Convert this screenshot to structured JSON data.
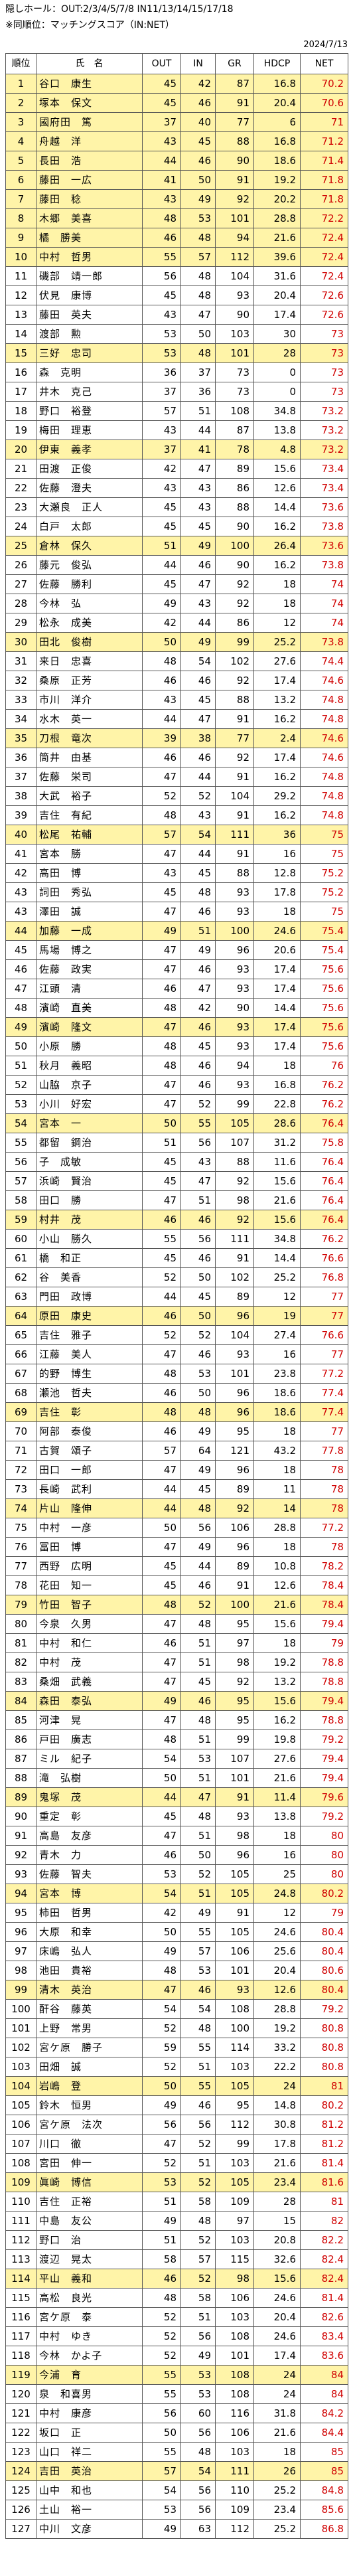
{
  "header": {
    "line1": "隠しホール：OUT:2/3/4/5/7/8 IN11/13/14/15/17/18",
    "line2": "※同順位：マッチングスコア（IN:NET）",
    "date": "2024/7/13"
  },
  "columns": [
    "順位",
    "氏　名",
    "OUT",
    "IN",
    "GR",
    "HDCP",
    "NET"
  ],
  "colors": {
    "highlight": "#fff4a8",
    "net_red": "#d00000"
  },
  "rows": [
    {
      "rank": "1",
      "name": "谷口　康生",
      "out": "45",
      "in": "42",
      "gr": "87",
      "hdcp": "16.8",
      "net": "70.2"
    },
    {
      "rank": "2",
      "name": "塚本　保文",
      "out": "45",
      "in": "46",
      "gr": "91",
      "hdcp": "20.4",
      "net": "70.6"
    },
    {
      "rank": "3",
      "name": "國府田　篤",
      "out": "37",
      "in": "40",
      "gr": "77",
      "hdcp": "6",
      "net": "71"
    },
    {
      "rank": "4",
      "name": "舟越　洋",
      "out": "43",
      "in": "45",
      "gr": "88",
      "hdcp": "16.8",
      "net": "71.2"
    },
    {
      "rank": "5",
      "name": "長田　浩",
      "out": "44",
      "in": "46",
      "gr": "90",
      "hdcp": "18.6",
      "net": "71.4"
    },
    {
      "rank": "6",
      "name": "藤田　一広",
      "out": "41",
      "in": "50",
      "gr": "91",
      "hdcp": "19.2",
      "net": "71.8"
    },
    {
      "rank": "7",
      "name": "藤田　稔",
      "out": "43",
      "in": "49",
      "gr": "92",
      "hdcp": "20.2",
      "net": "71.8"
    },
    {
      "rank": "8",
      "name": "木郷　美喜",
      "out": "48",
      "in": "53",
      "gr": "101",
      "hdcp": "28.8",
      "net": "72.2"
    },
    {
      "rank": "9",
      "name": "橘　勝美",
      "out": "46",
      "in": "48",
      "gr": "94",
      "hdcp": "21.6",
      "net": "72.4"
    },
    {
      "rank": "10",
      "name": "中村　哲男",
      "out": "55",
      "in": "57",
      "gr": "112",
      "hdcp": "39.6",
      "net": "72.4"
    },
    {
      "rank": "11",
      "name": "磯部　靖一郎",
      "out": "56",
      "in": "48",
      "gr": "104",
      "hdcp": "31.6",
      "net": "72.4"
    },
    {
      "rank": "12",
      "name": "伏見　康博",
      "out": "45",
      "in": "48",
      "gr": "93",
      "hdcp": "20.4",
      "net": "72.6"
    },
    {
      "rank": "13",
      "name": "藤田　英夫",
      "out": "43",
      "in": "47",
      "gr": "90",
      "hdcp": "17.4",
      "net": "72.6"
    },
    {
      "rank": "14",
      "name": "渡部　勲",
      "out": "53",
      "in": "50",
      "gr": "103",
      "hdcp": "30",
      "net": "73"
    },
    {
      "rank": "15",
      "name": "三好　忠司",
      "out": "53",
      "in": "48",
      "gr": "101",
      "hdcp": "28",
      "net": "73"
    },
    {
      "rank": "16",
      "name": "森　克明",
      "out": "36",
      "in": "37",
      "gr": "73",
      "hdcp": "0",
      "net": "73"
    },
    {
      "rank": "17",
      "name": "井木　克己",
      "out": "37",
      "in": "36",
      "gr": "73",
      "hdcp": "0",
      "net": "73"
    },
    {
      "rank": "18",
      "name": "野口　裕登",
      "out": "57",
      "in": "51",
      "gr": "108",
      "hdcp": "34.8",
      "net": "73.2"
    },
    {
      "rank": "19",
      "name": "梅田　理恵",
      "out": "43",
      "in": "44",
      "gr": "87",
      "hdcp": "13.8",
      "net": "73.2"
    },
    {
      "rank": "20",
      "name": "伊東　義孝",
      "out": "37",
      "in": "41",
      "gr": "78",
      "hdcp": "4.8",
      "net": "73.2"
    },
    {
      "rank": "21",
      "name": "田渡　正俊",
      "out": "42",
      "in": "47",
      "gr": "89",
      "hdcp": "15.6",
      "net": "73.4"
    },
    {
      "rank": "22",
      "name": "佐藤　澄夫",
      "out": "43",
      "in": "43",
      "gr": "86",
      "hdcp": "12.6",
      "net": "73.4"
    },
    {
      "rank": "23",
      "name": "大瀬良　正人",
      "out": "45",
      "in": "43",
      "gr": "88",
      "hdcp": "14.4",
      "net": "73.6"
    },
    {
      "rank": "24",
      "name": "白戸　太郎",
      "out": "45",
      "in": "45",
      "gr": "90",
      "hdcp": "16.2",
      "net": "73.8"
    },
    {
      "rank": "25",
      "name": "倉林　保久",
      "out": "51",
      "in": "49",
      "gr": "100",
      "hdcp": "26.4",
      "net": "73.6"
    },
    {
      "rank": "26",
      "name": "藤元　俊弘",
      "out": "44",
      "in": "46",
      "gr": "90",
      "hdcp": "16.2",
      "net": "73.8"
    },
    {
      "rank": "27",
      "name": "佐藤　勝利",
      "out": "45",
      "in": "47",
      "gr": "92",
      "hdcp": "18",
      "net": "74"
    },
    {
      "rank": "28",
      "name": "今林　弘",
      "out": "49",
      "in": "43",
      "gr": "92",
      "hdcp": "18",
      "net": "74"
    },
    {
      "rank": "29",
      "name": "松永　成美",
      "out": "42",
      "in": "44",
      "gr": "86",
      "hdcp": "12",
      "net": "74"
    },
    {
      "rank": "30",
      "name": "田北　俊樹",
      "out": "50",
      "in": "49",
      "gr": "99",
      "hdcp": "25.2",
      "net": "73.8"
    },
    {
      "rank": "31",
      "name": "来日　忠喜",
      "out": "48",
      "in": "54",
      "gr": "102",
      "hdcp": "27.6",
      "net": "74.4"
    },
    {
      "rank": "32",
      "name": "桑原　正芳",
      "out": "46",
      "in": "46",
      "gr": "92",
      "hdcp": "17.4",
      "net": "74.6"
    },
    {
      "rank": "33",
      "name": "市川　洋介",
      "out": "43",
      "in": "45",
      "gr": "88",
      "hdcp": "13.2",
      "net": "74.8"
    },
    {
      "rank": "34",
      "name": "水木　英一",
      "out": "44",
      "in": "47",
      "gr": "91",
      "hdcp": "16.2",
      "net": "74.8"
    },
    {
      "rank": "35",
      "name": "刀根　竜次",
      "out": "39",
      "in": "38",
      "gr": "77",
      "hdcp": "2.4",
      "net": "74.6"
    },
    {
      "rank": "36",
      "name": "筒井　由基",
      "out": "46",
      "in": "46",
      "gr": "92",
      "hdcp": "17.4",
      "net": "74.6"
    },
    {
      "rank": "37",
      "name": "佐藤　栄司",
      "out": "47",
      "in": "44",
      "gr": "91",
      "hdcp": "16.2",
      "net": "74.8"
    },
    {
      "rank": "38",
      "name": "大武　裕子",
      "out": "52",
      "in": "52",
      "gr": "104",
      "hdcp": "29.2",
      "net": "74.8"
    },
    {
      "rank": "39",
      "name": "吉住　有紀",
      "out": "48",
      "in": "43",
      "gr": "91",
      "hdcp": "16.2",
      "net": "74.8"
    },
    {
      "rank": "40",
      "name": "松尾　祐輔",
      "out": "57",
      "in": "54",
      "gr": "111",
      "hdcp": "36",
      "net": "75"
    },
    {
      "rank": "41",
      "name": "宮本　勝",
      "out": "47",
      "in": "44",
      "gr": "91",
      "hdcp": "16",
      "net": "75"
    },
    {
      "rank": "42",
      "name": "高田　博",
      "out": "43",
      "in": "45",
      "gr": "88",
      "hdcp": "12.8",
      "net": "75.2"
    },
    {
      "rank": "43",
      "name": "詞田　秀弘",
      "out": "45",
      "in": "48",
      "gr": "93",
      "hdcp": "17.8",
      "net": "75.2"
    },
    {
      "rank": "43",
      "name": "澤田　誠",
      "out": "47",
      "in": "46",
      "gr": "93",
      "hdcp": "18",
      "net": "75"
    },
    {
      "rank": "44",
      "name": "加藤　一成",
      "out": "49",
      "in": "51",
      "gr": "100",
      "hdcp": "24.6",
      "net": "75.4"
    },
    {
      "rank": "45",
      "name": "馬場　博之",
      "out": "47",
      "in": "49",
      "gr": "96",
      "hdcp": "20.6",
      "net": "75.4"
    },
    {
      "rank": "46",
      "name": "佐藤　政実",
      "out": "47",
      "in": "46",
      "gr": "93",
      "hdcp": "17.4",
      "net": "75.6"
    },
    {
      "rank": "47",
      "name": "江頭　清",
      "out": "46",
      "in": "47",
      "gr": "93",
      "hdcp": "17.4",
      "net": "75.6"
    },
    {
      "rank": "48",
      "name": "濱崎　直美",
      "out": "48",
      "in": "42",
      "gr": "90",
      "hdcp": "14.4",
      "net": "75.6"
    },
    {
      "rank": "49",
      "name": "濱崎　隆文",
      "out": "47",
      "in": "46",
      "gr": "93",
      "hdcp": "17.4",
      "net": "75.6"
    },
    {
      "rank": "50",
      "name": "小原　勝",
      "out": "48",
      "in": "45",
      "gr": "93",
      "hdcp": "17.4",
      "net": "75.6"
    },
    {
      "rank": "51",
      "name": "秋月　義昭",
      "out": "48",
      "in": "46",
      "gr": "94",
      "hdcp": "18",
      "net": "76"
    },
    {
      "rank": "52",
      "name": "山脇　京子",
      "out": "47",
      "in": "46",
      "gr": "93",
      "hdcp": "16.8",
      "net": "76.2"
    },
    {
      "rank": "53",
      "name": "小川　好宏",
      "out": "47",
      "in": "52",
      "gr": "99",
      "hdcp": "22.8",
      "net": "76.2"
    },
    {
      "rank": "54",
      "name": "宮本　一",
      "out": "50",
      "in": "55",
      "gr": "105",
      "hdcp": "28.6",
      "net": "76.4"
    },
    {
      "rank": "55",
      "name": "都留　鋼治",
      "out": "51",
      "in": "56",
      "gr": "107",
      "hdcp": "31.2",
      "net": "75.8"
    },
    {
      "rank": "56",
      "name": "子　成敏",
      "out": "45",
      "in": "43",
      "gr": "88",
      "hdcp": "11.6",
      "net": "76.4"
    },
    {
      "rank": "57",
      "name": "浜崎　賢治",
      "out": "45",
      "in": "47",
      "gr": "92",
      "hdcp": "15.6",
      "net": "76.4"
    },
    {
      "rank": "58",
      "name": "田口　勝",
      "out": "47",
      "in": "51",
      "gr": "98",
      "hdcp": "21.6",
      "net": "76.4"
    },
    {
      "rank": "59",
      "name": "村井　茂",
      "out": "46",
      "in": "46",
      "gr": "92",
      "hdcp": "15.6",
      "net": "76.4"
    },
    {
      "rank": "60",
      "name": "小山　勝久",
      "out": "55",
      "in": "56",
      "gr": "111",
      "hdcp": "34.8",
      "net": "76.2"
    },
    {
      "rank": "61",
      "name": "橋　和正",
      "out": "45",
      "in": "46",
      "gr": "91",
      "hdcp": "14.4",
      "net": "76.6"
    },
    {
      "rank": "62",
      "name": "谷　美香",
      "out": "52",
      "in": "50",
      "gr": "102",
      "hdcp": "25.2",
      "net": "76.8"
    },
    {
      "rank": "63",
      "name": "門田　政博",
      "out": "44",
      "in": "45",
      "gr": "89",
      "hdcp": "12",
      "net": "77"
    },
    {
      "rank": "64",
      "name": "原田　康史",
      "out": "46",
      "in": "50",
      "gr": "96",
      "hdcp": "19",
      "net": "77"
    },
    {
      "rank": "65",
      "name": "吉住　雅子",
      "out": "52",
      "in": "52",
      "gr": "104",
      "hdcp": "27.4",
      "net": "76.6"
    },
    {
      "rank": "66",
      "name": "江藤　美人",
      "out": "47",
      "in": "46",
      "gr": "93",
      "hdcp": "16",
      "net": "77"
    },
    {
      "rank": "67",
      "name": "的野　博生",
      "out": "48",
      "in": "53",
      "gr": "101",
      "hdcp": "23.8",
      "net": "77.2"
    },
    {
      "rank": "68",
      "name": "瀬池　哲夫",
      "out": "46",
      "in": "50",
      "gr": "96",
      "hdcp": "18.6",
      "net": "77.4"
    },
    {
      "rank": "69",
      "name": "吉住　彰",
      "out": "48",
      "in": "48",
      "gr": "96",
      "hdcp": "18.6",
      "net": "77.4"
    },
    {
      "rank": "70",
      "name": "阿部　泰俊",
      "out": "46",
      "in": "49",
      "gr": "95",
      "hdcp": "18",
      "net": "77"
    },
    {
      "rank": "71",
      "name": "古賀　頌子",
      "out": "57",
      "in": "64",
      "gr": "121",
      "hdcp": "43.2",
      "net": "77.8"
    },
    {
      "rank": "72",
      "name": "田口　一郎",
      "out": "47",
      "in": "49",
      "gr": "96",
      "hdcp": "18",
      "net": "78"
    },
    {
      "rank": "73",
      "name": "長崎　武利",
      "out": "44",
      "in": "45",
      "gr": "89",
      "hdcp": "11",
      "net": "78"
    },
    {
      "rank": "74",
      "name": "片山　隆伸",
      "out": "44",
      "in": "48",
      "gr": "92",
      "hdcp": "14",
      "net": "78"
    },
    {
      "rank": "75",
      "name": "中村　一彦",
      "out": "50",
      "in": "56",
      "gr": "106",
      "hdcp": "28.8",
      "net": "77.2"
    },
    {
      "rank": "76",
      "name": "冨田　博",
      "out": "47",
      "in": "49",
      "gr": "96",
      "hdcp": "18",
      "net": "78"
    },
    {
      "rank": "77",
      "name": "西野　広明",
      "out": "45",
      "in": "44",
      "gr": "89",
      "hdcp": "10.8",
      "net": "78.2"
    },
    {
      "rank": "78",
      "name": "花田　知一",
      "out": "45",
      "in": "46",
      "gr": "91",
      "hdcp": "12.6",
      "net": "78.4"
    },
    {
      "rank": "79",
      "name": "竹田　智子",
      "out": "48",
      "in": "52",
      "gr": "100",
      "hdcp": "21.6",
      "net": "78.4"
    },
    {
      "rank": "80",
      "name": "今泉　久男",
      "out": "47",
      "in": "48",
      "gr": "95",
      "hdcp": "15.6",
      "net": "79.4"
    },
    {
      "rank": "81",
      "name": "中村　和仁",
      "out": "46",
      "in": "51",
      "gr": "97",
      "hdcp": "18",
      "net": "79"
    },
    {
      "rank": "82",
      "name": "中村　茂",
      "out": "47",
      "in": "51",
      "gr": "98",
      "hdcp": "19.2",
      "net": "78.8"
    },
    {
      "rank": "83",
      "name": "桑畑　武義",
      "out": "47",
      "in": "45",
      "gr": "92",
      "hdcp": "13.2",
      "net": "78.8"
    },
    {
      "rank": "84",
      "name": "森田　泰弘",
      "out": "49",
      "in": "46",
      "gr": "95",
      "hdcp": "15.6",
      "net": "79.4"
    },
    {
      "rank": "85",
      "name": "河津　晃",
      "out": "47",
      "in": "48",
      "gr": "95",
      "hdcp": "16.2",
      "net": "78.8"
    },
    {
      "rank": "86",
      "name": "戸田　廣志",
      "out": "48",
      "in": "51",
      "gr": "99",
      "hdcp": "19.8",
      "net": "79.2"
    },
    {
      "rank": "87",
      "name": "ミル　紀子",
      "out": "54",
      "in": "53",
      "gr": "107",
      "hdcp": "27.6",
      "net": "79.4"
    },
    {
      "rank": "88",
      "name": "滝　弘樹",
      "out": "50",
      "in": "51",
      "gr": "101",
      "hdcp": "21.6",
      "net": "79.4"
    },
    {
      "rank": "89",
      "name": "鬼塚　茂",
      "out": "44",
      "in": "47",
      "gr": "91",
      "hdcp": "11.4",
      "net": "79.6"
    },
    {
      "rank": "90",
      "name": "重定　彰",
      "out": "45",
      "in": "48",
      "gr": "93",
      "hdcp": "13.8",
      "net": "79.2"
    },
    {
      "rank": "91",
      "name": "高島　友彦",
      "out": "47",
      "in": "51",
      "gr": "98",
      "hdcp": "18",
      "net": "80"
    },
    {
      "rank": "92",
      "name": "青木　力",
      "out": "46",
      "in": "50",
      "gr": "96",
      "hdcp": "16",
      "net": "80"
    },
    {
      "rank": "93",
      "name": "佐藤　智夫",
      "out": "53",
      "in": "52",
      "gr": "105",
      "hdcp": "25",
      "net": "80"
    },
    {
      "rank": "94",
      "name": "宮本　博",
      "out": "54",
      "in": "51",
      "gr": "105",
      "hdcp": "24.8",
      "net": "80.2"
    },
    {
      "rank": "95",
      "name": "柿田　哲男",
      "out": "42",
      "in": "49",
      "gr": "91",
      "hdcp": "12",
      "net": "79"
    },
    {
      "rank": "96",
      "name": "大原　和幸",
      "out": "50",
      "in": "55",
      "gr": "105",
      "hdcp": "24.6",
      "net": "80.4"
    },
    {
      "rank": "97",
      "name": "床嶋　弘人",
      "out": "49",
      "in": "57",
      "gr": "106",
      "hdcp": "25.6",
      "net": "80.4"
    },
    {
      "rank": "98",
      "name": "池田　貴裕",
      "out": "48",
      "in": "53",
      "gr": "101",
      "hdcp": "20.4",
      "net": "80.6"
    },
    {
      "rank": "99",
      "name": "清木　英治",
      "out": "47",
      "in": "46",
      "gr": "93",
      "hdcp": "12.6",
      "net": "80.4"
    },
    {
      "rank": "100",
      "name": "酐谷　藤英",
      "out": "54",
      "in": "54",
      "gr": "108",
      "hdcp": "28.8",
      "net": "79.2"
    },
    {
      "rank": "101",
      "name": "上野　常男",
      "out": "52",
      "in": "48",
      "gr": "100",
      "hdcp": "19.2",
      "net": "80.8"
    },
    {
      "rank": "102",
      "name": "宮ケ原　勝子",
      "out": "59",
      "in": "55",
      "gr": "114",
      "hdcp": "33.2",
      "net": "80.8"
    },
    {
      "rank": "103",
      "name": "田畑　誠",
      "out": "52",
      "in": "51",
      "gr": "103",
      "hdcp": "22.2",
      "net": "80.8"
    },
    {
      "rank": "104",
      "name": "岩嶋　登",
      "out": "50",
      "in": "55",
      "gr": "105",
      "hdcp": "24",
      "net": "81"
    },
    {
      "rank": "105",
      "name": "鈴木　恒男",
      "out": "49",
      "in": "46",
      "gr": "95",
      "hdcp": "14.8",
      "net": "80.2"
    },
    {
      "rank": "106",
      "name": "宮ケ原　法次",
      "out": "56",
      "in": "56",
      "gr": "112",
      "hdcp": "30.8",
      "net": "81.2"
    },
    {
      "rank": "107",
      "name": "川口　徹",
      "out": "47",
      "in": "52",
      "gr": "99",
      "hdcp": "17.8",
      "net": "81.2"
    },
    {
      "rank": "108",
      "name": "宮田　伸一",
      "out": "52",
      "in": "51",
      "gr": "103",
      "hdcp": "21.6",
      "net": "81.4"
    },
    {
      "rank": "109",
      "name": "眞崎　博信",
      "out": "53",
      "in": "52",
      "gr": "105",
      "hdcp": "23.4",
      "net": "81.6"
    },
    {
      "rank": "110",
      "name": "吉住　正裕",
      "out": "51",
      "in": "58",
      "gr": "109",
      "hdcp": "28",
      "net": "81"
    },
    {
      "rank": "111",
      "name": "中島　友公",
      "out": "49",
      "in": "48",
      "gr": "97",
      "hdcp": "15",
      "net": "82"
    },
    {
      "rank": "112",
      "name": "野口　治",
      "out": "51",
      "in": "52",
      "gr": "103",
      "hdcp": "20.8",
      "net": "82.2"
    },
    {
      "rank": "113",
      "name": "渡辺　晃太",
      "out": "58",
      "in": "57",
      "gr": "115",
      "hdcp": "32.6",
      "net": "82.4"
    },
    {
      "rank": "114",
      "name": "平山　義和",
      "out": "46",
      "in": "52",
      "gr": "98",
      "hdcp": "15.6",
      "net": "82.4"
    },
    {
      "rank": "115",
      "name": "高松　良光",
      "out": "48",
      "in": "58",
      "gr": "106",
      "hdcp": "24.6",
      "net": "81.4"
    },
    {
      "rank": "116",
      "name": "宮ケ原　泰",
      "out": "52",
      "in": "51",
      "gr": "103",
      "hdcp": "20.4",
      "net": "82.6"
    },
    {
      "rank": "117",
      "name": "中村　ゆき",
      "out": "52",
      "in": "56",
      "gr": "108",
      "hdcp": "24.6",
      "net": "83.4"
    },
    {
      "rank": "118",
      "name": "今林　かよ子",
      "out": "52",
      "in": "49",
      "gr": "101",
      "hdcp": "17.4",
      "net": "83.6"
    },
    {
      "rank": "119",
      "name": "今浦　育",
      "out": "55",
      "in": "53",
      "gr": "108",
      "hdcp": "24",
      "net": "84"
    },
    {
      "rank": "120",
      "name": "泉　和喜男",
      "out": "55",
      "in": "53",
      "gr": "108",
      "hdcp": "24",
      "net": "84"
    },
    {
      "rank": "121",
      "name": "中村　康彦",
      "out": "56",
      "in": "60",
      "gr": "116",
      "hdcp": "31.8",
      "net": "84.2"
    },
    {
      "rank": "122",
      "name": "坂口　正",
      "out": "50",
      "in": "56",
      "gr": "106",
      "hdcp": "21.6",
      "net": "84.4"
    },
    {
      "rank": "123",
      "name": "山口　祥二",
      "out": "55",
      "in": "48",
      "gr": "103",
      "hdcp": "18",
      "net": "85"
    },
    {
      "rank": "124",
      "name": "吉田　英治",
      "out": "57",
      "in": "54",
      "gr": "111",
      "hdcp": "26",
      "net": "85"
    },
    {
      "rank": "125",
      "name": "山中　和也",
      "out": "54",
      "in": "56",
      "gr": "110",
      "hdcp": "25.2",
      "net": "84.8"
    },
    {
      "rank": "126",
      "name": "土山　裕一",
      "out": "53",
      "in": "56",
      "gr": "109",
      "hdcp": "23.4",
      "net": "85.6"
    },
    {
      "rank": "127",
      "name": "中川　文彦",
      "out": "49",
      "in": "63",
      "gr": "112",
      "hdcp": "25.2",
      "net": "86.8"
    }
  ]
}
